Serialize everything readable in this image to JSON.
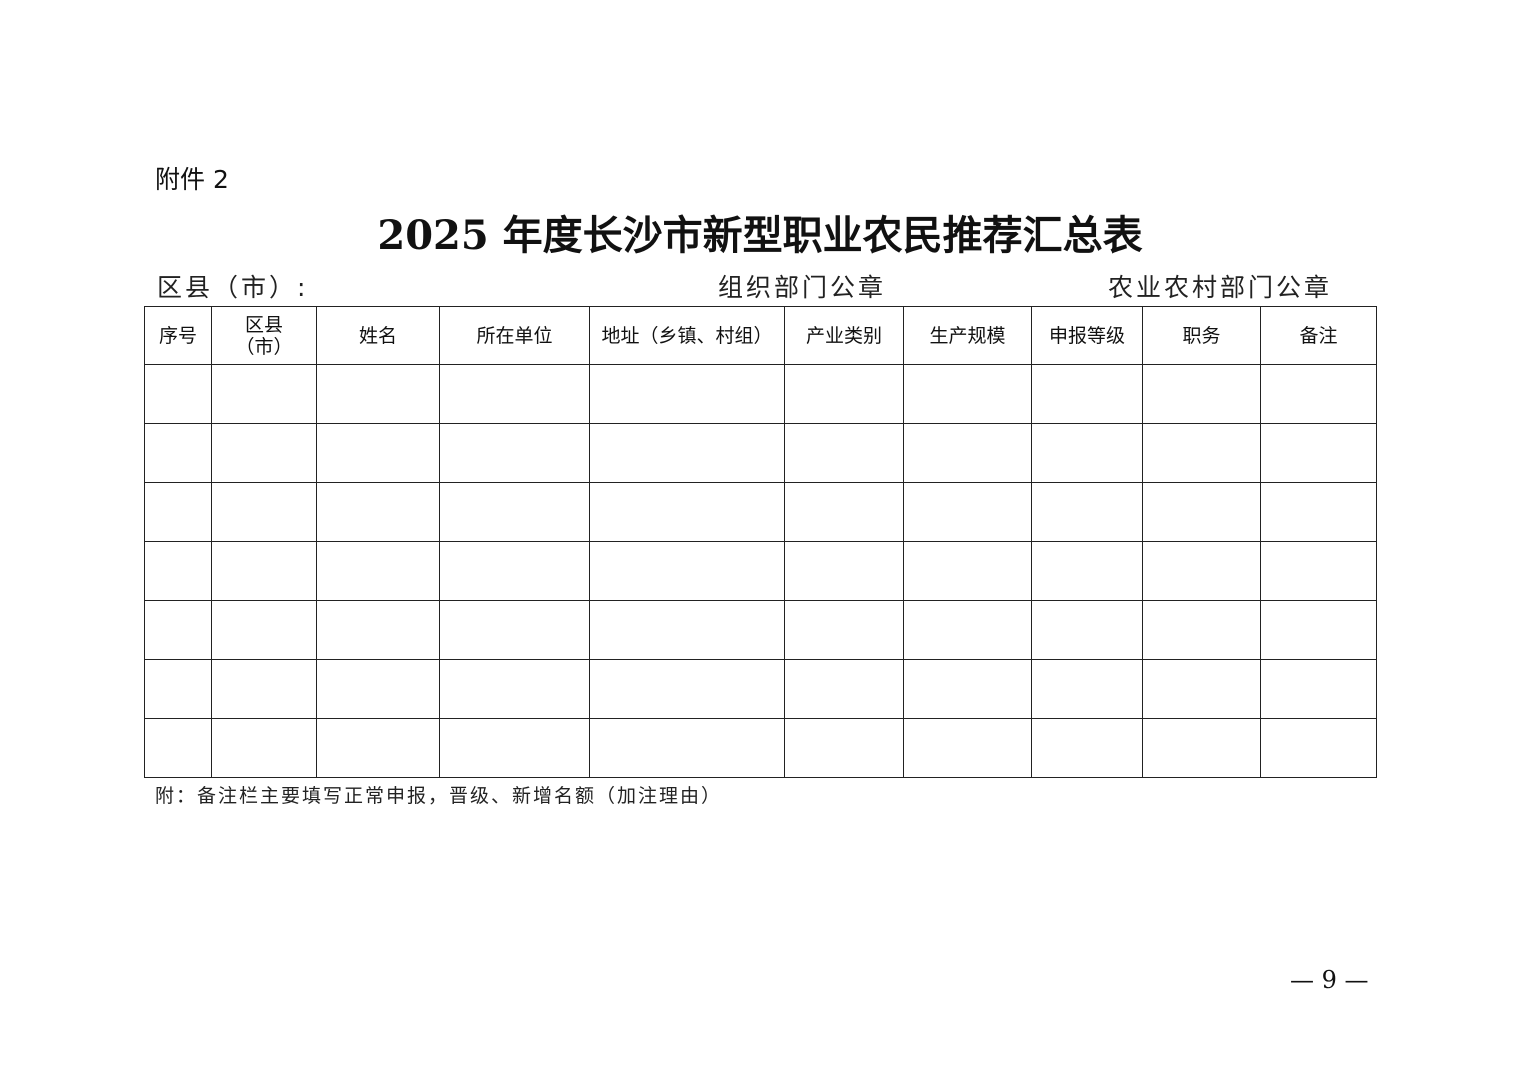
{
  "attachment_label": "附件 2",
  "title": "2025 年度长沙市新型职业农民推荐汇总表",
  "county_label": "区县（市）:",
  "org_seal_label": "组织部门公章",
  "agri_seal_label": "农业农村部门公章",
  "table": {
    "headers": [
      "序号",
      "区县（市）",
      "姓名",
      "所在单位",
      "地址（乡镇、村组）",
      "产业类别",
      "生产规模",
      "申报等级",
      "职务",
      "备注"
    ],
    "rows": [
      [
        "",
        "",
        "",
        "",
        "",
        "",
        "",
        "",
        "",
        ""
      ],
      [
        "",
        "",
        "",
        "",
        "",
        "",
        "",
        "",
        "",
        ""
      ],
      [
        "",
        "",
        "",
        "",
        "",
        "",
        "",
        "",
        "",
        ""
      ],
      [
        "",
        "",
        "",
        "",
        "",
        "",
        "",
        "",
        "",
        ""
      ],
      [
        "",
        "",
        "",
        "",
        "",
        "",
        "",
        "",
        "",
        ""
      ],
      [
        "",
        "",
        "",
        "",
        "",
        "",
        "",
        "",
        "",
        ""
      ],
      [
        "",
        "",
        "",
        "",
        "",
        "",
        "",
        "",
        "",
        ""
      ]
    ]
  },
  "note": "附：备注栏主要填写正常申报，晋级、新增名额（加注理由）",
  "page_number": "— 9 —"
}
